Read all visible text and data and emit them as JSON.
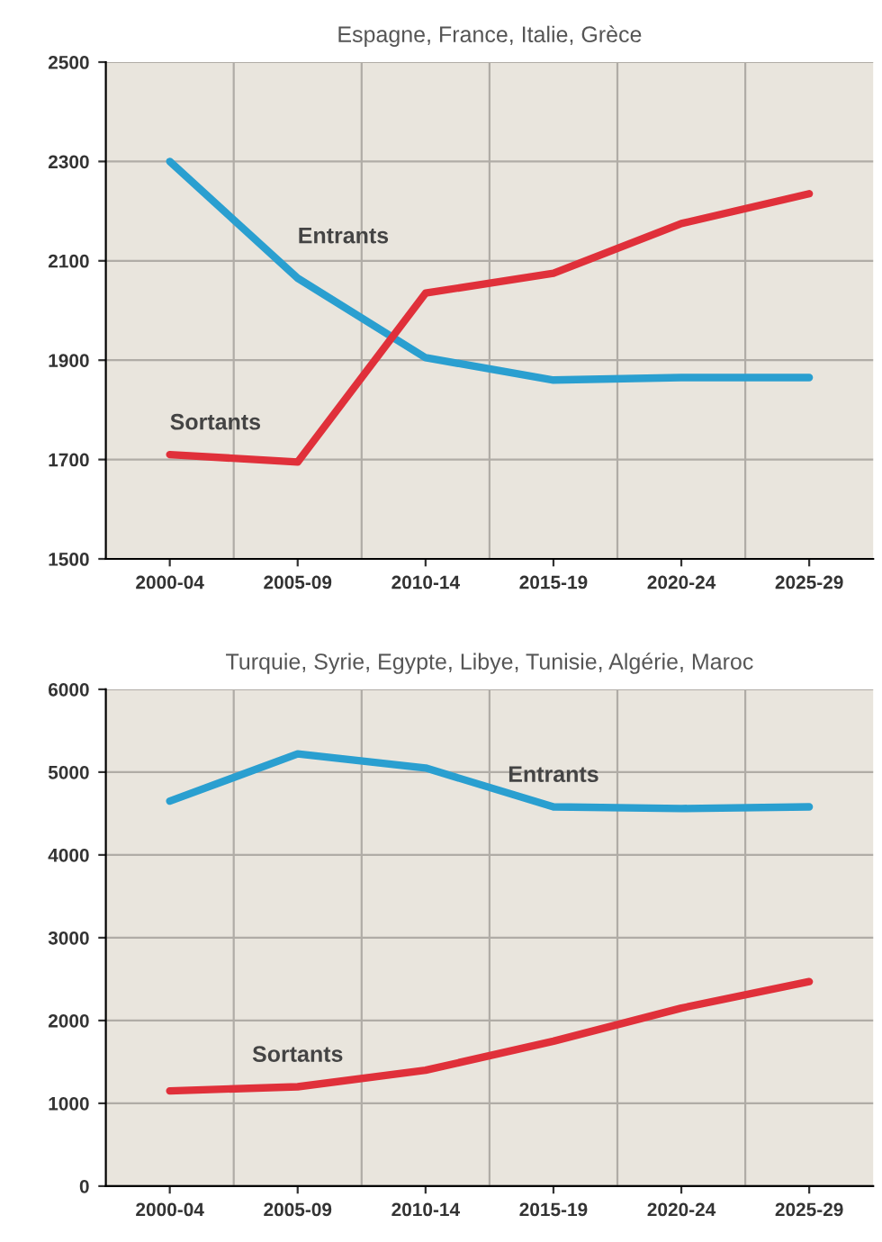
{
  "chart_data": [
    {
      "type": "line",
      "title": "Espagne, France, Italie, Grèce",
      "categories": [
        "2000-04",
        "2005-09",
        "2010-14",
        "2015-19",
        "2020-24",
        "2025-29"
      ],
      "series": [
        {
          "name": "Entrants",
          "color": "#2a9fd0",
          "values": [
            2300,
            2065,
            1905,
            1860,
            1865,
            1865
          ]
        },
        {
          "name": "Sortants",
          "color": "#e0303a",
          "values": [
            1710,
            1695,
            2035,
            2075,
            2175,
            2235
          ]
        }
      ],
      "ylim": [
        1500,
        2500
      ],
      "yticks": [
        1500,
        1700,
        1900,
        2100,
        2300,
        2500
      ],
      "grid": true,
      "legend": false,
      "marker": "none",
      "line_style": "solid"
    },
    {
      "type": "line",
      "title": "Turquie, Syrie, Egypte, Libye, Tunisie, Algérie, Maroc",
      "categories": [
        "2000-04",
        "2005-09",
        "2010-14",
        "2015-19",
        "2020-24",
        "2025-29"
      ],
      "series": [
        {
          "name": "Entrants",
          "color": "#2a9fd0",
          "values": [
            4650,
            5220,
            5050,
            4580,
            4560,
            4580
          ]
        },
        {
          "name": "Sortants",
          "color": "#e0303a",
          "values": [
            1150,
            1200,
            1400,
            1750,
            2150,
            2470
          ]
        }
      ],
      "ylim": [
        0,
        6000
      ],
      "yticks": [
        0,
        1000,
        2000,
        3000,
        4000,
        5000,
        6000
      ],
      "grid": true,
      "legend": false,
      "marker": "none",
      "line_style": "solid"
    }
  ]
}
